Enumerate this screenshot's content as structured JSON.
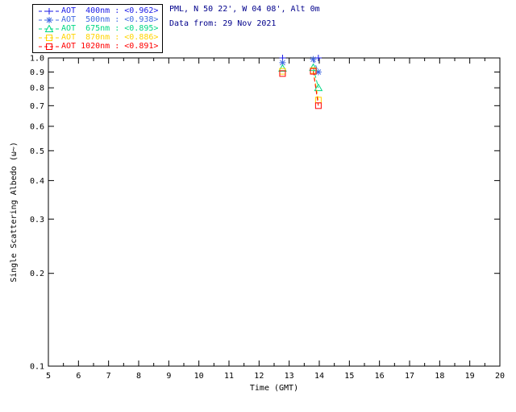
{
  "header": {
    "site_line": "PML, N 50 22', W 04 08', Alt 0m",
    "date_line": "Data from: 29 Nov 2021"
  },
  "legend": {
    "entries": [
      {
        "text": "AOT  400nm : <0.962>",
        "color": "#1a1ae6",
        "marker": "plus"
      },
      {
        "text": "AOT  500nm : <0.938>",
        "color": "#4169e1",
        "marker": "asterisk"
      },
      {
        "text": "AOT  675nm : <0.895>",
        "color": "#00d884",
        "marker": "triangle"
      },
      {
        "text": "AOT  870nm : <0.886>",
        "color": "#ffd400",
        "marker": "square"
      },
      {
        "text": "AOT 1020nm : <0.891>",
        "color": "#ff0000",
        "marker": "square"
      }
    ]
  },
  "chart_data": {
    "type": "scatter",
    "title": "",
    "xlabel": "Time (GMT)",
    "ylabel": "Single Scattering Albedo (ω~)",
    "xlim": [
      5,
      20
    ],
    "ylim": [
      0.1,
      1.0
    ],
    "yscale": "log",
    "grid": false,
    "legend_position": "top-left",
    "xticks": [
      5,
      6,
      7,
      8,
      9,
      10,
      11,
      12,
      13,
      14,
      15,
      16,
      17,
      18,
      19,
      20
    ],
    "yticks": [
      1.0,
      0.9,
      0.8,
      0.7,
      0.6,
      0.5,
      0.4,
      0.3,
      0.2,
      0.1
    ],
    "series": [
      {
        "name": "AOT 400nm",
        "mean": "<0.962>",
        "color": "#1a1ae6",
        "marker": "plus",
        "points": [
          [
            12.78,
            1.0
          ],
          [
            13.97,
            1.0
          ]
        ]
      },
      {
        "name": "AOT 500nm",
        "mean": "<0.938>",
        "color": "#4169e1",
        "marker": "asterisk",
        "points": [
          [
            12.78,
            0.965
          ],
          [
            13.8,
            0.99
          ],
          [
            13.97,
            0.9
          ]
        ]
      },
      {
        "name": "AOT 675nm",
        "mean": "<0.895>",
        "color": "#00d884",
        "marker": "triangle",
        "points": [
          [
            12.78,
            0.925
          ],
          [
            13.8,
            0.93
          ],
          [
            13.97,
            0.8
          ]
        ]
      },
      {
        "name": "AOT 870nm",
        "mean": "<0.886>",
        "color": "#ffd400",
        "marker": "square",
        "points": [
          [
            12.78,
            0.905
          ],
          [
            13.8,
            0.91
          ],
          [
            13.97,
            0.73
          ]
        ]
      },
      {
        "name": "AOT 1020nm",
        "mean": "<0.891>",
        "color": "#ff0000",
        "marker": "square",
        "points": [
          [
            12.78,
            0.89
          ],
          [
            13.8,
            0.905
          ],
          [
            13.97,
            0.7
          ]
        ]
      }
    ]
  }
}
